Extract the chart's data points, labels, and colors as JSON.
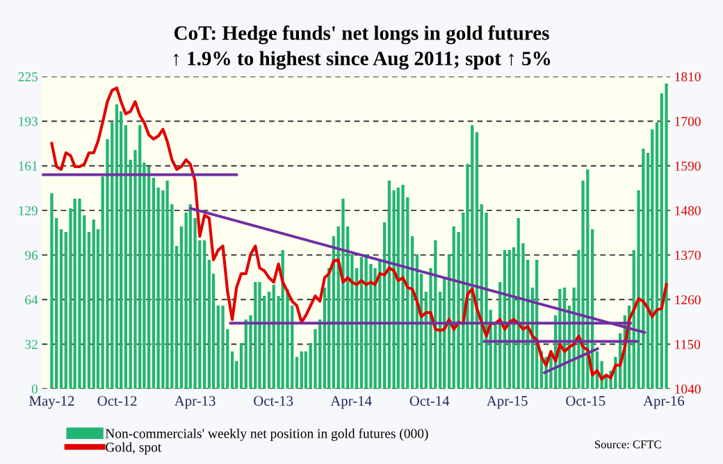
{
  "chart_data": {
    "type": "bar",
    "title": "CoT: Hedge funds' net longs in gold futures",
    "subtitle": "↑ 1.9% to highest since Aug 2011; spot ↑ 5%",
    "annotations": [
      "Source: CFTC"
    ],
    "x": [
      "2012-05-01",
      "2012-05-12",
      "2012-05-23",
      "2012-06-03",
      "2012-06-14",
      "2012-06-24",
      "2012-07-05",
      "2012-07-16",
      "2012-07-27",
      "2012-08-07",
      "2012-08-17",
      "2012-08-28",
      "2012-09-08",
      "2012-09-19",
      "2012-09-30",
      "2012-10-10",
      "2012-10-21",
      "2012-11-01",
      "2012-11-12",
      "2012-11-23",
      "2012-12-03",
      "2012-12-14",
      "2012-12-25",
      "2013-01-05",
      "2013-01-16",
      "2013-01-26",
      "2013-02-06",
      "2013-02-17",
      "2013-02-28",
      "2013-03-11",
      "2013-03-21",
      "2013-04-01",
      "2013-04-12",
      "2013-04-23",
      "2013-05-04",
      "2013-05-14",
      "2013-05-25",
      "2013-06-05",
      "2013-06-16",
      "2013-06-27",
      "2013-07-07",
      "2013-07-18",
      "2013-07-29",
      "2013-08-09",
      "2013-08-20",
      "2013-08-30",
      "2013-09-10",
      "2013-09-21",
      "2013-10-02",
      "2013-10-13",
      "2013-10-23",
      "2013-11-03",
      "2013-11-14",
      "2013-11-25",
      "2013-12-06",
      "2013-12-16",
      "2013-12-27",
      "2014-01-07",
      "2014-01-18",
      "2014-01-29",
      "2014-02-08",
      "2014-02-19",
      "2014-03-02",
      "2014-03-13",
      "2014-03-24",
      "2014-04-03",
      "2014-04-14",
      "2014-04-25",
      "2014-05-06",
      "2014-05-17",
      "2014-05-27",
      "2014-06-07",
      "2014-06-18",
      "2014-06-29",
      "2014-07-10",
      "2014-07-20",
      "2014-07-31",
      "2014-08-11",
      "2014-08-22",
      "2014-09-02",
      "2014-09-12",
      "2014-09-23",
      "2014-10-04",
      "2014-10-15",
      "2014-10-26",
      "2014-11-05",
      "2014-11-16",
      "2014-11-27",
      "2014-12-08",
      "2014-12-19",
      "2014-12-29",
      "2015-01-09",
      "2015-01-20",
      "2015-01-31",
      "2015-02-11",
      "2015-02-21",
      "2015-03-04",
      "2015-03-15",
      "2015-03-26",
      "2015-04-06",
      "2015-04-16",
      "2015-04-27",
      "2015-05-08",
      "2015-05-19",
      "2015-05-30",
      "2015-06-09",
      "2015-06-20",
      "2015-07-01",
      "2015-07-12",
      "2015-07-23",
      "2015-08-02",
      "2015-08-13",
      "2015-08-24",
      "2015-09-04",
      "2015-09-15",
      "2015-09-25",
      "2015-10-06",
      "2015-10-17",
      "2015-10-28",
      "2015-11-08",
      "2015-11-18",
      "2015-11-29",
      "2015-12-10",
      "2015-12-21",
      "2016-01-01",
      "2016-01-11",
      "2016-01-22",
      "2016-02-02",
      "2016-02-13",
      "2016-02-24",
      "2016-03-05",
      "2016-03-16",
      "2016-03-27",
      "2016-04-07"
    ],
    "series": [
      {
        "name": "Non-commercials' weekly net position in gold futures (000)",
        "color": "#22b573",
        "values": [
          141,
          123,
          115,
          113,
          130,
          137,
          137,
          125,
          113,
          122,
          115,
          153,
          180,
          192,
          205,
          200,
          190,
          165,
          172,
          190,
          163,
          160,
          152,
          145,
          143,
          150,
          133,
          103,
          117,
          127,
          133,
          123,
          107,
          107,
          93,
          83,
          60,
          60,
          43,
          27,
          20,
          33,
          50,
          53,
          77,
          77,
          67,
          70,
          75,
          67,
          100,
          72,
          60,
          23,
          27,
          27,
          33,
          43,
          50,
          73,
          87,
          110,
          117,
          137,
          117,
          97,
          87,
          95,
          97,
          90,
          87,
          93,
          120,
          150,
          143,
          145,
          147,
          138,
          110,
          97,
          83,
          70,
          87,
          107,
          70,
          80,
          97,
          117,
          113,
          127,
          162,
          190,
          185,
          133,
          127,
          57,
          47,
          77,
          100,
          100,
          102,
          123,
          105,
          93,
          73,
          93,
          27,
          23,
          27,
          53,
          72,
          73,
          60,
          73,
          100,
          150,
          158,
          115,
          27,
          20,
          10,
          13,
          23,
          40,
          53,
          60,
          100,
          143,
          173,
          170,
          187,
          192,
          213,
          220
        ]
      },
      {
        "name": "Gold, spot",
        "type": "line",
        "axis": "y2",
        "color": "#e00000",
        "values": [
          1645,
          1588,
          1581,
          1622,
          1615,
          1588,
          1588,
          1594,
          1622,
          1622,
          1650,
          1697,
          1748,
          1776,
          1782,
          1748,
          1718,
          1724,
          1748,
          1714,
          1697,
          1666,
          1656,
          1663,
          1680,
          1650,
          1605,
          1581,
          1588,
          1605,
          1594,
          1553,
          1416,
          1468,
          1461,
          1358,
          1382,
          1392,
          1280,
          1211,
          1290,
          1324,
          1324,
          1372,
          1392,
          1338,
          1331,
          1314,
          1303,
          1348,
          1303,
          1280,
          1256,
          1245,
          1204,
          1221,
          1245,
          1269,
          1256,
          1314,
          1324,
          1355,
          1358,
          1303,
          1314,
          1303,
          1297,
          1307,
          1297,
          1303,
          1297,
          1324,
          1321,
          1338,
          1331,
          1307,
          1314,
          1290,
          1286,
          1256,
          1218,
          1228,
          1228,
          1187,
          1184,
          1187,
          1211,
          1187,
          1204,
          1201,
          1273,
          1286,
          1238,
          1204,
          1170,
          1201,
          1201,
          1211,
          1187,
          1204,
          1211,
          1201,
          1187,
          1194,
          1170,
          1160,
          1119,
          1098,
          1132,
          1108,
          1150,
          1132,
          1143,
          1150,
          1170,
          1143,
          1136,
          1074,
          1085,
          1064,
          1074,
          1067,
          1098,
          1098,
          1143,
          1211,
          1235,
          1262,
          1256,
          1238,
          1218,
          1235,
          1238,
          1297
        ]
      },
      {
        "type": "line",
        "axis": "y2",
        "color": "#7030a0",
        "x": [
          "2012-04-08",
          "2013-07-07"
        ],
        "values": [
          1568,
          1568
        ]
      },
      {
        "type": "line",
        "axis": "y2",
        "color": "#7030a0",
        "x": [
          "2013-03-21",
          "2016-02-16"
        ],
        "values": [
          1485,
          1179
        ]
      },
      {
        "type": "line",
        "axis": "y2",
        "color": "#7030a0",
        "x": [
          "2013-06-23",
          "2016-01-14"
        ],
        "values": [
          1202,
          1202
        ]
      },
      {
        "type": "line",
        "axis": "y2",
        "color": "#7030a0",
        "x": [
          "2015-02-07",
          "2016-01-30"
        ],
        "values": [
          1157,
          1157
        ]
      },
      {
        "type": "line",
        "axis": "y2",
        "color": "#7030a0",
        "x": [
          "2015-06-27",
          "2015-10-29"
        ],
        "values": [
          1080,
          1139
        ]
      }
    ],
    "xlim": [
      "2012-04-08",
      "2016-04-16"
    ],
    "xticks": [
      {
        "value": "2012-05-01",
        "label": "May-12"
      },
      {
        "value": "2012-10-01",
        "label": "Oct-12"
      },
      {
        "value": "2013-04-01",
        "label": "Apr-13"
      },
      {
        "value": "2013-10-01",
        "label": "Oct-13"
      },
      {
        "value": "2014-04-01",
        "label": "Apr-14"
      },
      {
        "value": "2014-10-01",
        "label": "Oct-14"
      },
      {
        "value": "2015-04-01",
        "label": "Apr-15"
      },
      {
        "value": "2015-10-01",
        "label": "Oct-15"
      },
      {
        "value": "2016-04-01",
        "label": "Apr-16"
      }
    ],
    "ylim": [
      0,
      225
    ],
    "yticks": [
      0,
      {
        "value": 32.14,
        "label": "32"
      },
      {
        "value": 64.29,
        "label": "64"
      },
      {
        "value": 96.43,
        "label": "96"
      },
      {
        "value": 128.57,
        "label": "129"
      },
      {
        "value": 160.71,
        "label": "161"
      },
      {
        "value": 192.86,
        "label": "193"
      },
      225
    ],
    "y2lim": [
      1040,
      1810
    ],
    "y2ticks": [
      1040,
      1150,
      1260,
      1370,
      1480,
      1590,
      1700,
      1810
    ],
    "grid": "y",
    "legend": "bottom left"
  }
}
